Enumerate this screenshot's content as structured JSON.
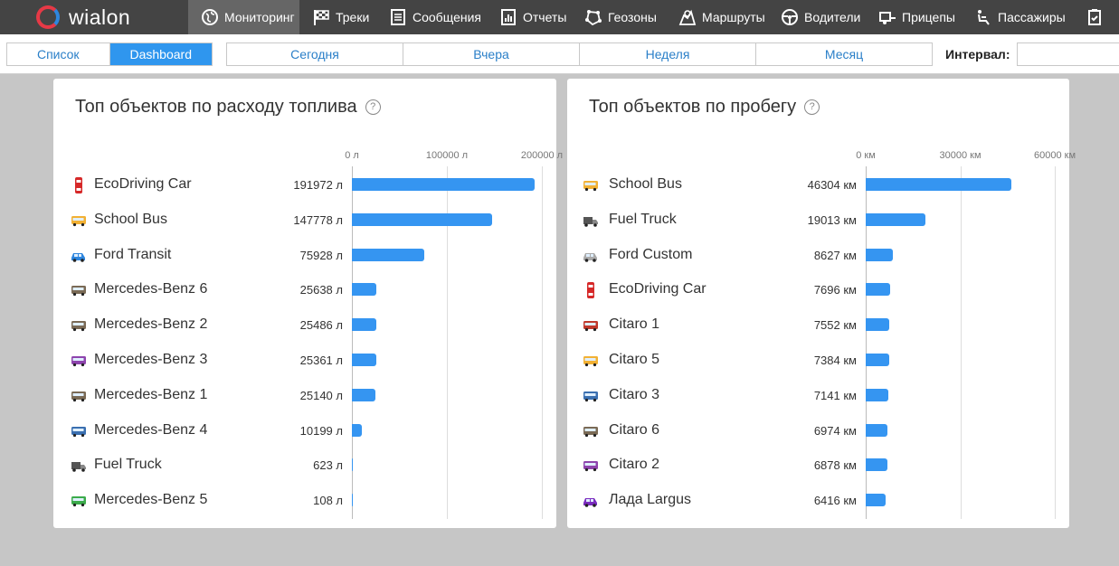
{
  "header": {
    "logo_text": "wialon",
    "nav": [
      {
        "label": "Мониторинг",
        "icon": "globe-icon",
        "active": true
      },
      {
        "label": "Треки",
        "icon": "checkered-flag-icon"
      },
      {
        "label": "Сообщения",
        "icon": "list-icon"
      },
      {
        "label": "Отчеты",
        "icon": "report-chart-icon"
      },
      {
        "label": "Геозоны",
        "icon": "geofence-icon"
      },
      {
        "label": "Маршруты",
        "icon": "route-map-icon"
      },
      {
        "label": "Водители",
        "icon": "steering-wheel-icon"
      },
      {
        "label": "Прицепы",
        "icon": "trailer-icon"
      },
      {
        "label": "Пассажиры",
        "icon": "passenger-seat-icon"
      },
      {
        "label": "",
        "icon": "clipboard-check-icon"
      }
    ]
  },
  "toolbar": {
    "view_tabs": [
      {
        "label": "Список",
        "active": false
      },
      {
        "label": "Dashboard",
        "active": true
      }
    ],
    "periods": [
      "Сегодня",
      "Вчера",
      "Неделя",
      "Месяц"
    ],
    "interval_label": "Интервал:",
    "interval_value": ""
  },
  "colors": {
    "bar": "#3595f1",
    "accent": "#2f96ee",
    "nav_bg": "#444444"
  },
  "fuel": {
    "title": "Топ объектов по расходу топлива",
    "unit": "л",
    "max": 200000,
    "ticks": [
      {
        "label": "0 л",
        "value": 0
      },
      {
        "label": "100000 л",
        "value": 100000
      },
      {
        "label": "200000 л",
        "value": 200000
      }
    ],
    "rows": [
      {
        "name": "EcoDriving Car",
        "value_text": "191972 л",
        "value": 191972,
        "icon": "red-car-icon"
      },
      {
        "name": "School Bus",
        "value_text": "147778 л",
        "value": 147778,
        "icon": "yellow-bus-icon"
      },
      {
        "name": "Ford Transit",
        "value_text": "75928 л",
        "value": 75928,
        "icon": "blue-car-icon"
      },
      {
        "name": "Mercedes-Benz 6",
        "value_text": "25638 л",
        "value": 25638,
        "icon": "bus-icon"
      },
      {
        "name": "Mercedes-Benz 2",
        "value_text": "25486 л",
        "value": 25486,
        "icon": "bus-icon"
      },
      {
        "name": "Mercedes-Benz 3",
        "value_text": "25361 л",
        "value": 25361,
        "icon": "purple-bus-icon"
      },
      {
        "name": "Mercedes-Benz 1",
        "value_text": "25140 л",
        "value": 25140,
        "icon": "bus-icon"
      },
      {
        "name": "Mercedes-Benz 4",
        "value_text": "10199 л",
        "value": 10199,
        "icon": "blue-bus-icon"
      },
      {
        "name": "Fuel Truck",
        "value_text": "623 л",
        "value": 623,
        "icon": "truck-icon"
      },
      {
        "name": "Mercedes-Benz 5",
        "value_text": "108 л",
        "value": 108,
        "icon": "green-bus-icon"
      }
    ]
  },
  "mileage": {
    "title": "Топ объектов по пробегу",
    "unit": "км",
    "max": 60000,
    "ticks": [
      {
        "label": "0 км",
        "value": 0
      },
      {
        "label": "30000 км",
        "value": 30000
      },
      {
        "label": "60000 км",
        "value": 60000
      }
    ],
    "rows": [
      {
        "name": "School Bus",
        "value_text": "46304 км",
        "value": 46304,
        "icon": "yellow-bus-icon"
      },
      {
        "name": "Fuel Truck",
        "value_text": "19013 км",
        "value": 19013,
        "icon": "truck-icon"
      },
      {
        "name": "Ford Custom",
        "value_text": "8627 км",
        "value": 8627,
        "icon": "van-icon"
      },
      {
        "name": "EcoDriving Car",
        "value_text": "7696 км",
        "value": 7696,
        "icon": "red-car-icon"
      },
      {
        "name": "Citaro 1",
        "value_text": "7552 км",
        "value": 7552,
        "icon": "red-bus-icon"
      },
      {
        "name": "Citaro 5",
        "value_text": "7384 км",
        "value": 7384,
        "icon": "yellow-bus-icon"
      },
      {
        "name": "Citaro 3",
        "value_text": "7141 км",
        "value": 7141,
        "icon": "blue-bus-icon"
      },
      {
        "name": "Citaro 6",
        "value_text": "6974 км",
        "value": 6974,
        "icon": "bus-icon"
      },
      {
        "name": "Citaro 2",
        "value_text": "6878 км",
        "value": 6878,
        "icon": "purple-bus-icon"
      },
      {
        "name": "Лада Largus",
        "value_text": "6416 км",
        "value": 6416,
        "icon": "purple-car-icon"
      }
    ]
  }
}
